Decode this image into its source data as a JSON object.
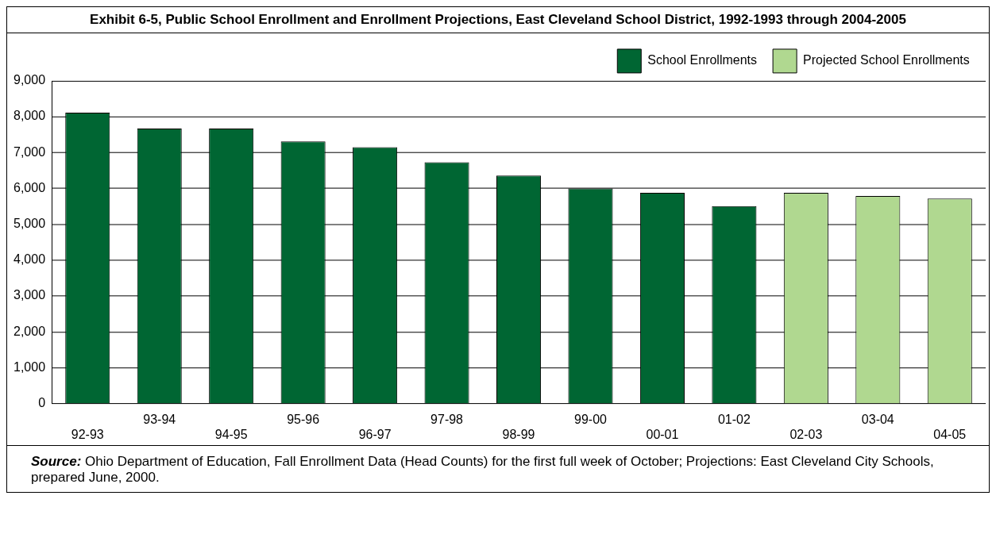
{
  "chart_data": {
    "type": "bar",
    "title": "Exhibit 6-5, Public School Enrollment and Enrollment Projections, East Cleveland School District, 1992-1993 through 2004-2005",
    "categories": [
      "92-93",
      "93-94",
      "94-95",
      "95-96",
      "96-97",
      "97-98",
      "98-99",
      "99-00",
      "00-01",
      "01-02",
      "02-03",
      "03-04",
      "04-05"
    ],
    "series": [
      {
        "name": "School Enrollments",
        "color": "#006633",
        "values": [
          8110,
          7670,
          7670,
          7310,
          7150,
          6730,
          6360,
          6000,
          5880,
          5510,
          null,
          null,
          null
        ]
      },
      {
        "name": "Projected School Enrollments",
        "color": "#b0d890",
        "values": [
          null,
          null,
          null,
          null,
          null,
          null,
          null,
          null,
          null,
          null,
          5880,
          5790,
          5720
        ]
      }
    ],
    "stacked": true,
    "ylim": [
      0,
      9000
    ],
    "yticks": [
      {
        "value": 0,
        "label": "0"
      },
      {
        "value": 1000,
        "label": "1,000"
      },
      {
        "value": 2000,
        "label": "2,000"
      },
      {
        "value": 3000,
        "label": "3,000"
      },
      {
        "value": 4000,
        "label": "4,000"
      },
      {
        "value": 5000,
        "label": "5,000"
      },
      {
        "value": 6000,
        "label": "6,000"
      },
      {
        "value": 7000,
        "label": "7,000"
      },
      {
        "value": 8000,
        "label": "8,000"
      },
      {
        "value": 9000,
        "label": "9,000"
      }
    ],
    "grid": "y",
    "legend": "top right",
    "annotations": [
      "Source: Ohio Department of Education, Fall Enrollment Data (Head Counts) for the first full week of October;  Projections: East Cleveland City Schools, prepared June, 2000."
    ]
  }
}
